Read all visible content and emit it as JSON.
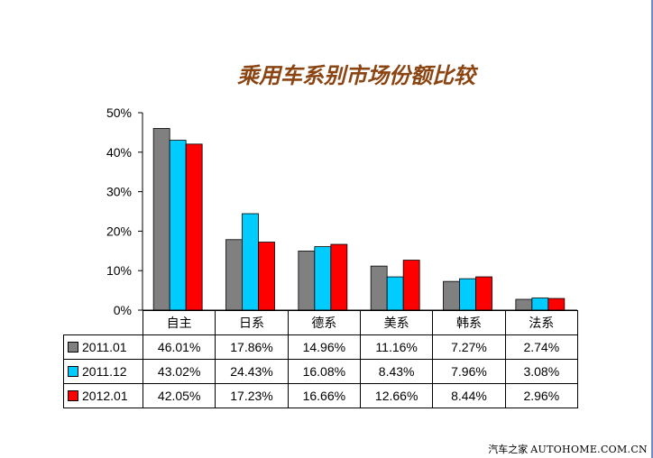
{
  "chart_data": {
    "type": "bar",
    "title": "乘用车系别市场份额比较",
    "categories": [
      "自主",
      "日系",
      "德系",
      "美系",
      "韩系",
      "法系"
    ],
    "series": [
      {
        "name": "2011.01",
        "color": "#808080",
        "values": [
          46.01,
          17.86,
          14.96,
          11.16,
          7.27,
          2.74
        ],
        "labels": [
          "46.01%",
          "17.86%",
          "14.96%",
          "11.16%",
          "7.27%",
          "2.74%"
        ]
      },
      {
        "name": "2011.12",
        "color": "#00ccff",
        "values": [
          43.02,
          24.43,
          16.08,
          8.43,
          7.96,
          3.08
        ],
        "labels": [
          "43.02%",
          "24.43%",
          "16.08%",
          "8.43%",
          "7.96%",
          "3.08%"
        ]
      },
      {
        "name": "2012.01",
        "color": "#ff0000",
        "values": [
          42.05,
          17.23,
          16.66,
          12.66,
          8.44,
          2.96
        ],
        "labels": [
          "42.05%",
          "17.23%",
          "16.66%",
          "12.66%",
          "8.44%",
          "2.96%"
        ]
      }
    ],
    "ylim": [
      0,
      50
    ],
    "yticks": [
      0,
      10,
      20,
      30,
      40,
      50
    ],
    "ytick_labels": [
      "0%",
      "10%",
      "20%",
      "30%",
      "40%",
      "50%"
    ],
    "grid": false,
    "legend": "data-table"
  },
  "watermark": {
    "cn": "汽车之家",
    "en": "AUTOHOME.COM.CN"
  }
}
